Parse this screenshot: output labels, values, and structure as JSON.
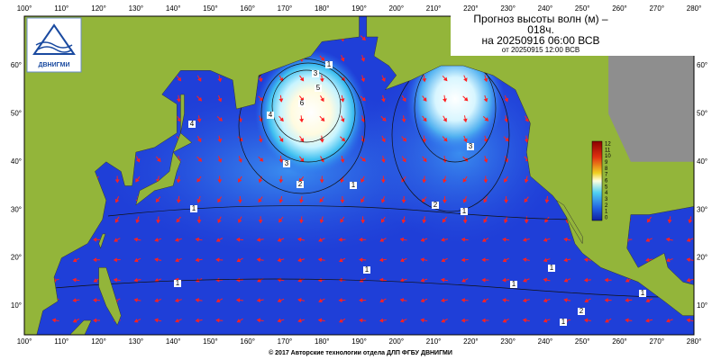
{
  "header": {
    "title_line1": "Прогноз высоты волн (м) –",
    "title_line2": "018ч.",
    "title_line3": "на 20250916 06:00 ВСВ",
    "title_line4": "от 20250915 12:00 ВСВ"
  },
  "logo": {
    "text": "ДВНИГМИ"
  },
  "axes": {
    "lon_labels": [
      "100°",
      "110°",
      "120°",
      "130°",
      "140°",
      "150°",
      "160°",
      "170°",
      "180°",
      "190°",
      "200°",
      "210°",
      "220°",
      "230°",
      "240°",
      "250°",
      "260°",
      "270°",
      "280°"
    ],
    "lat_labels": [
      "60°",
      "50°",
      "40°",
      "30°",
      "20°",
      "10°"
    ]
  },
  "colorbar": {
    "labels": [
      "12",
      "11",
      "10",
      "9",
      "8",
      "7",
      "6",
      "5",
      "4",
      "3",
      "2",
      "1",
      "0"
    ]
  },
  "contour_labels": [
    "6",
    "5",
    "4",
    "3",
    "2",
    "1",
    "4",
    "3",
    "1",
    "1",
    "2",
    "1",
    "3",
    "1",
    "1",
    "1",
    "1",
    "2",
    "1",
    "1"
  ],
  "footer": {
    "text": "© 2017 Авторские технологии отдела ДЛП ФГБУ ДВНИГМИ"
  }
}
